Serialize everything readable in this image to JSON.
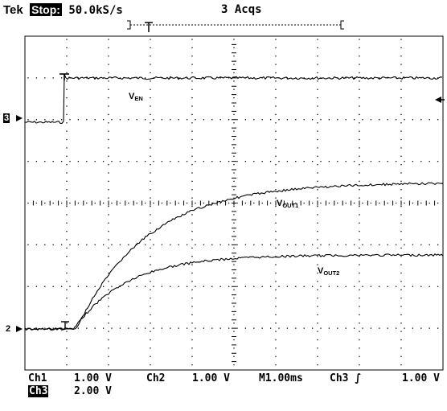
{
  "header": {
    "brand": "Tek",
    "run_state": "Stop:",
    "sample_rate": "50.0kS/s",
    "acquisitions": "3 Acqs"
  },
  "traces": {
    "en_label_main": "V",
    "en_label_sub": "EN",
    "out1_label_main": "V",
    "out1_label_sub": "OUT1",
    "out2_label_main": "V",
    "out2_label_sub": "OUT2"
  },
  "markers": {
    "ch3_marker": "3",
    "ch2_marker": "2",
    "trigger_t": "T"
  },
  "readouts": {
    "ch1_label": "Ch1",
    "ch1_scale": "1.00 V",
    "ch2_label": "Ch2",
    "ch2_scale": "1.00 V",
    "timebase": "M1.00ms",
    "trig_source": "Ch3",
    "trig_slope": "∫",
    "trig_level": "1.00 V",
    "ch3_label": "Ch3",
    "ch3_scale": "2.00 V"
  },
  "colors": {
    "background": "#ffffff",
    "trace": "#000000",
    "grid": "#000000"
  }
}
